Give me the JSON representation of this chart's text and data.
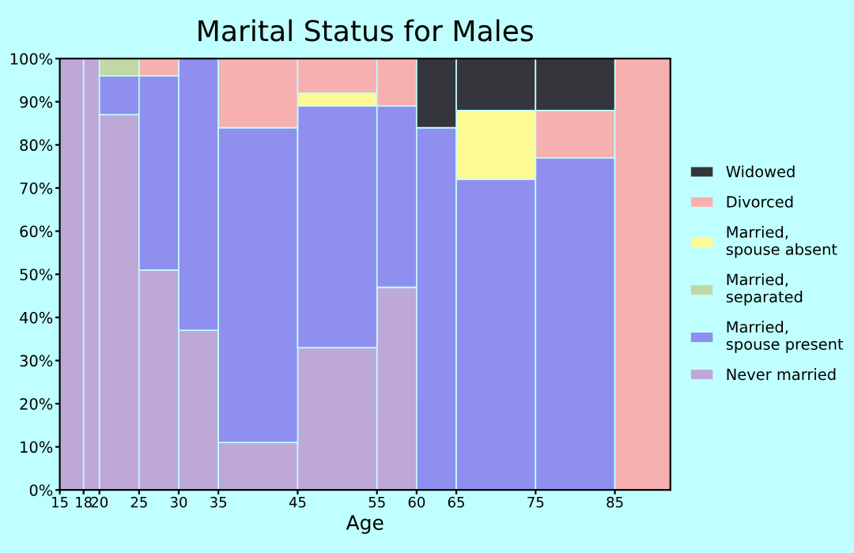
{
  "chart_data": {
    "type": "bar",
    "stacked": true,
    "title": "Marital Status for Males",
    "xlabel": "Age",
    "x": [
      16.5,
      19,
      22.5,
      27.5,
      32.5,
      40,
      50,
      57.5,
      62.5,
      70,
      80,
      88.5
    ],
    "xlim": [
      15,
      92
    ],
    "xticks": [
      15,
      18,
      20,
      25,
      30,
      35,
      45,
      55,
      60,
      65,
      75,
      85
    ],
    "ylim": [
      0,
      100
    ],
    "yticks": [
      {
        "value": 0,
        "label": "0%"
      },
      {
        "value": 10,
        "label": "10%"
      },
      {
        "value": 20,
        "label": "20%"
      },
      {
        "value": 30,
        "label": "30%"
      },
      {
        "value": 40,
        "label": "40%"
      },
      {
        "value": 50,
        "label": "50%"
      },
      {
        "value": 60,
        "label": "60%"
      },
      {
        "value": 70,
        "label": "70%"
      },
      {
        "value": 80,
        "label": "80%"
      },
      {
        "value": 90,
        "label": "90%"
      },
      {
        "value": 100,
        "label": "100%"
      }
    ],
    "legend": "right",
    "grid": false,
    "series": [
      {
        "name": "Never married",
        "color": "#bea8d8",
        "values": [
          100,
          100,
          87,
          51,
          37,
          11,
          33,
          47,
          null,
          null,
          null,
          null
        ]
      },
      {
        "name": "Married, spouse present",
        "color": "#8f8ff0",
        "values": [
          null,
          null,
          9,
          45,
          63,
          73,
          56,
          42,
          84,
          72,
          77,
          null
        ]
      },
      {
        "name": "Married, separated",
        "color": "#c0d9a4",
        "values": [
          null,
          null,
          4,
          null,
          null,
          null,
          null,
          null,
          null,
          null,
          null,
          null
        ]
      },
      {
        "name": "Married, spouse absent",
        "color": "#fdf993",
        "values": [
          null,
          null,
          null,
          null,
          null,
          null,
          3,
          null,
          null,
          16,
          null,
          null
        ]
      },
      {
        "name": "Divorced",
        "color": "#f7b0b0",
        "values": [
          null,
          null,
          null,
          4,
          null,
          16,
          8,
          11,
          null,
          null,
          11,
          100
        ]
      },
      {
        "name": "Widowed",
        "color": "#35363c",
        "values": [
          null,
          null,
          null,
          null,
          null,
          null,
          null,
          null,
          16,
          12,
          12,
          null
        ]
      }
    ]
  }
}
